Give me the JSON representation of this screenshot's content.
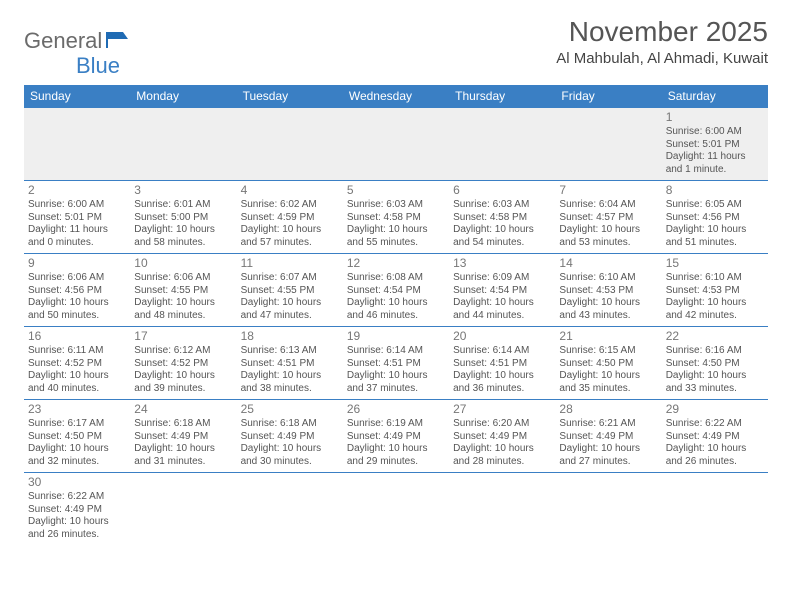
{
  "logo": {
    "word1": "General",
    "word2": "Blue"
  },
  "header": {
    "month_title": "November 2025",
    "location": "Al Mahbulah, Al Ahmadi, Kuwait"
  },
  "colors": {
    "brand_blue": "#3a7fc4",
    "header_text": "#ffffff",
    "body_text": "#555555",
    "muted": "#777777",
    "week1_bg": "#efefef"
  },
  "daynames": [
    "Sunday",
    "Monday",
    "Tuesday",
    "Wednesday",
    "Thursday",
    "Friday",
    "Saturday"
  ],
  "weeks": [
    [
      null,
      null,
      null,
      null,
      null,
      null,
      {
        "n": "1",
        "sr": "Sunrise: 6:00 AM",
        "ss": "Sunset: 5:01 PM",
        "dl": "Daylight: 11 hours and 1 minute."
      }
    ],
    [
      {
        "n": "2",
        "sr": "Sunrise: 6:00 AM",
        "ss": "Sunset: 5:01 PM",
        "dl": "Daylight: 11 hours and 0 minutes."
      },
      {
        "n": "3",
        "sr": "Sunrise: 6:01 AM",
        "ss": "Sunset: 5:00 PM",
        "dl": "Daylight: 10 hours and 58 minutes."
      },
      {
        "n": "4",
        "sr": "Sunrise: 6:02 AM",
        "ss": "Sunset: 4:59 PM",
        "dl": "Daylight: 10 hours and 57 minutes."
      },
      {
        "n": "5",
        "sr": "Sunrise: 6:03 AM",
        "ss": "Sunset: 4:58 PM",
        "dl": "Daylight: 10 hours and 55 minutes."
      },
      {
        "n": "6",
        "sr": "Sunrise: 6:03 AM",
        "ss": "Sunset: 4:58 PM",
        "dl": "Daylight: 10 hours and 54 minutes."
      },
      {
        "n": "7",
        "sr": "Sunrise: 6:04 AM",
        "ss": "Sunset: 4:57 PM",
        "dl": "Daylight: 10 hours and 53 minutes."
      },
      {
        "n": "8",
        "sr": "Sunrise: 6:05 AM",
        "ss": "Sunset: 4:56 PM",
        "dl": "Daylight: 10 hours and 51 minutes."
      }
    ],
    [
      {
        "n": "9",
        "sr": "Sunrise: 6:06 AM",
        "ss": "Sunset: 4:56 PM",
        "dl": "Daylight: 10 hours and 50 minutes."
      },
      {
        "n": "10",
        "sr": "Sunrise: 6:06 AM",
        "ss": "Sunset: 4:55 PM",
        "dl": "Daylight: 10 hours and 48 minutes."
      },
      {
        "n": "11",
        "sr": "Sunrise: 6:07 AM",
        "ss": "Sunset: 4:55 PM",
        "dl": "Daylight: 10 hours and 47 minutes."
      },
      {
        "n": "12",
        "sr": "Sunrise: 6:08 AM",
        "ss": "Sunset: 4:54 PM",
        "dl": "Daylight: 10 hours and 46 minutes."
      },
      {
        "n": "13",
        "sr": "Sunrise: 6:09 AM",
        "ss": "Sunset: 4:54 PM",
        "dl": "Daylight: 10 hours and 44 minutes."
      },
      {
        "n": "14",
        "sr": "Sunrise: 6:10 AM",
        "ss": "Sunset: 4:53 PM",
        "dl": "Daylight: 10 hours and 43 minutes."
      },
      {
        "n": "15",
        "sr": "Sunrise: 6:10 AM",
        "ss": "Sunset: 4:53 PM",
        "dl": "Daylight: 10 hours and 42 minutes."
      }
    ],
    [
      {
        "n": "16",
        "sr": "Sunrise: 6:11 AM",
        "ss": "Sunset: 4:52 PM",
        "dl": "Daylight: 10 hours and 40 minutes."
      },
      {
        "n": "17",
        "sr": "Sunrise: 6:12 AM",
        "ss": "Sunset: 4:52 PM",
        "dl": "Daylight: 10 hours and 39 minutes."
      },
      {
        "n": "18",
        "sr": "Sunrise: 6:13 AM",
        "ss": "Sunset: 4:51 PM",
        "dl": "Daylight: 10 hours and 38 minutes."
      },
      {
        "n": "19",
        "sr": "Sunrise: 6:14 AM",
        "ss": "Sunset: 4:51 PM",
        "dl": "Daylight: 10 hours and 37 minutes."
      },
      {
        "n": "20",
        "sr": "Sunrise: 6:14 AM",
        "ss": "Sunset: 4:51 PM",
        "dl": "Daylight: 10 hours and 36 minutes."
      },
      {
        "n": "21",
        "sr": "Sunrise: 6:15 AM",
        "ss": "Sunset: 4:50 PM",
        "dl": "Daylight: 10 hours and 35 minutes."
      },
      {
        "n": "22",
        "sr": "Sunrise: 6:16 AM",
        "ss": "Sunset: 4:50 PM",
        "dl": "Daylight: 10 hours and 33 minutes."
      }
    ],
    [
      {
        "n": "23",
        "sr": "Sunrise: 6:17 AM",
        "ss": "Sunset: 4:50 PM",
        "dl": "Daylight: 10 hours and 32 minutes."
      },
      {
        "n": "24",
        "sr": "Sunrise: 6:18 AM",
        "ss": "Sunset: 4:49 PM",
        "dl": "Daylight: 10 hours and 31 minutes."
      },
      {
        "n": "25",
        "sr": "Sunrise: 6:18 AM",
        "ss": "Sunset: 4:49 PM",
        "dl": "Daylight: 10 hours and 30 minutes."
      },
      {
        "n": "26",
        "sr": "Sunrise: 6:19 AM",
        "ss": "Sunset: 4:49 PM",
        "dl": "Daylight: 10 hours and 29 minutes."
      },
      {
        "n": "27",
        "sr": "Sunrise: 6:20 AM",
        "ss": "Sunset: 4:49 PM",
        "dl": "Daylight: 10 hours and 28 minutes."
      },
      {
        "n": "28",
        "sr": "Sunrise: 6:21 AM",
        "ss": "Sunset: 4:49 PM",
        "dl": "Daylight: 10 hours and 27 minutes."
      },
      {
        "n": "29",
        "sr": "Sunrise: 6:22 AM",
        "ss": "Sunset: 4:49 PM",
        "dl": "Daylight: 10 hours and 26 minutes."
      }
    ],
    [
      {
        "n": "30",
        "sr": "Sunrise: 6:22 AM",
        "ss": "Sunset: 4:49 PM",
        "dl": "Daylight: 10 hours and 26 minutes."
      },
      null,
      null,
      null,
      null,
      null,
      null
    ]
  ]
}
